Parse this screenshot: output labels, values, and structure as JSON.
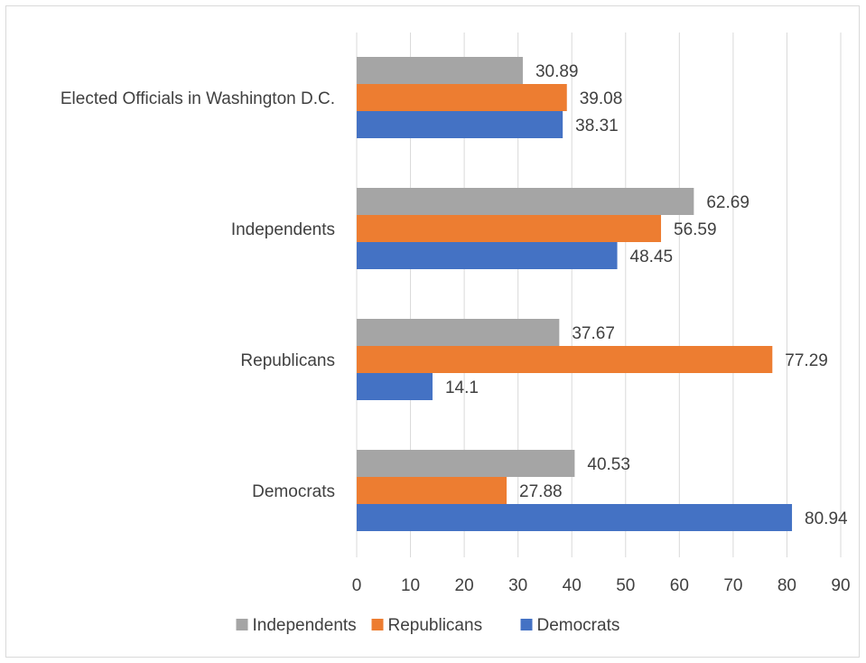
{
  "chart_data": {
    "type": "bar",
    "orientation": "horizontal",
    "categories": [
      "Elected Officials in Washington D.C.",
      "Independents",
      "Republicans",
      "Democrats"
    ],
    "series": [
      {
        "name": "Independents",
        "color": "#a5a5a5",
        "values": [
          30.89,
          62.69,
          37.67,
          40.53
        ]
      },
      {
        "name": "Republicans",
        "color": "#ed7d31",
        "values": [
          39.08,
          56.59,
          77.29,
          27.88
        ]
      },
      {
        "name": "Democrats",
        "color": "#4472c4",
        "values": [
          38.31,
          48.45,
          14.1,
          80.94
        ]
      }
    ],
    "data_labels": [
      [
        "30.89",
        "62.69",
        "37.67",
        "40.53"
      ],
      [
        "39.08",
        "56.59",
        "77.29",
        "27.88"
      ],
      [
        "38.31",
        "48.45",
        "14.1",
        "80.94"
      ]
    ],
    "xlim": [
      0,
      90
    ],
    "x_ticks": [
      0,
      10,
      20,
      30,
      40,
      50,
      60,
      70,
      80,
      90
    ],
    "x_tick_labels": [
      "0",
      "10",
      "20",
      "30",
      "40",
      "50",
      "60",
      "70",
      "80",
      "90"
    ],
    "grid": true,
    "legend_position": "bottom",
    "title": "",
    "xlabel": "",
    "ylabel": ""
  }
}
